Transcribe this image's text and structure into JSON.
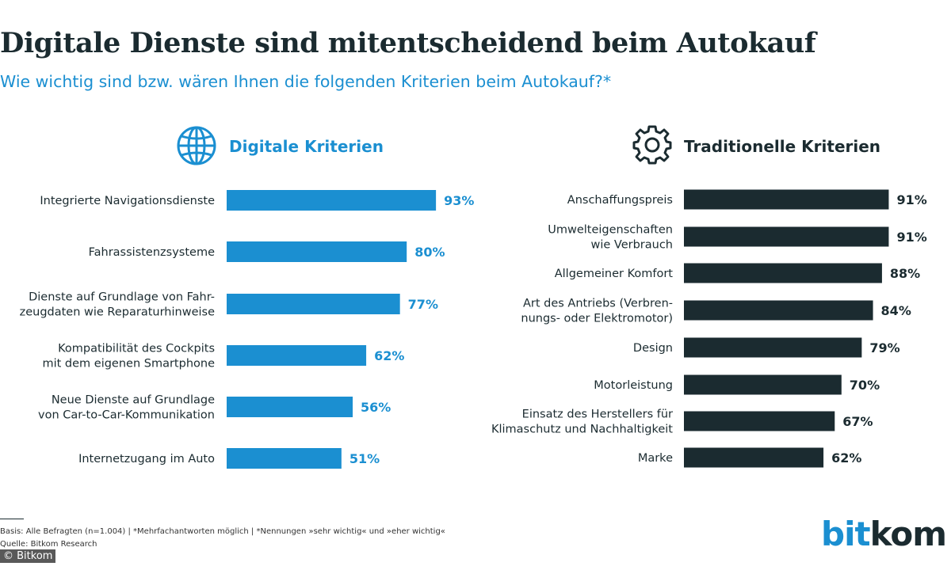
{
  "title": "Digitale Dienste sind mitentscheidend beim Autokauf",
  "subtitle": "Wie wichtig sind bzw. wären Ihnen die folgenden Kriterien beim Autokauf?*",
  "colors": {
    "digital": "#1b8fd1",
    "traditional": "#1b2b30"
  },
  "icons": {
    "left": "globe-icon",
    "right": "gear-icon"
  },
  "chart_data": [
    {
      "type": "bar",
      "orientation": "horizontal",
      "title": "Digitale Kriterien",
      "categories": [
        [
          "Integrierte Navigationsdienste"
        ],
        [
          "Fahrassistenzsysteme"
        ],
        [
          "Dienste auf Grundlage von Fahr-",
          "zeugdaten wie Reparaturhinweise"
        ],
        [
          "Kompatibilität des Cockpits",
          "mit dem eigenen Smartphone"
        ],
        [
          "Neue Dienste auf Grundlage",
          "von Car-to-Car-Kommunikation"
        ],
        [
          "Internetzugang im Auto"
        ]
      ],
      "values": [
        93,
        80,
        77,
        62,
        56,
        51
      ],
      "value_labels": [
        "93%",
        "80%",
        "77%",
        "62%",
        "56%",
        "51%"
      ],
      "unit": "%",
      "xlim": [
        0,
        100
      ]
    },
    {
      "type": "bar",
      "orientation": "horizontal",
      "title": "Traditionelle Kriterien",
      "categories": [
        [
          "Anschaffungspreis"
        ],
        [
          "Umwelteigenschaften",
          "wie Verbrauch"
        ],
        [
          "Allgemeiner Komfort"
        ],
        [
          "Art des Antriebs (Verbren-",
          "nungs- oder Elektromotor)"
        ],
        [
          "Design"
        ],
        [
          "Motorleistung"
        ],
        [
          "Einsatz des Herstellers für",
          "Klimaschutz und Nachhaltigkeit"
        ],
        [
          "Marke"
        ]
      ],
      "values": [
        91,
        91,
        88,
        84,
        79,
        70,
        67,
        62
      ],
      "value_labels": [
        "91%",
        "91%",
        "88%",
        "84%",
        "79%",
        "70%",
        "67%",
        "62%"
      ],
      "unit": "%",
      "xlim": [
        0,
        100
      ]
    }
  ],
  "footnote": {
    "line1": "Basis: Alle Befragten (n=1.004) | *Mehrfachantworten möglich | *Nennungen »sehr wichtig« und »eher wichtig«",
    "line2": "Quelle: Bitkom Research"
  },
  "copyright": "© Bitkom",
  "logo": {
    "part1": "bit",
    "part2": "kom"
  }
}
